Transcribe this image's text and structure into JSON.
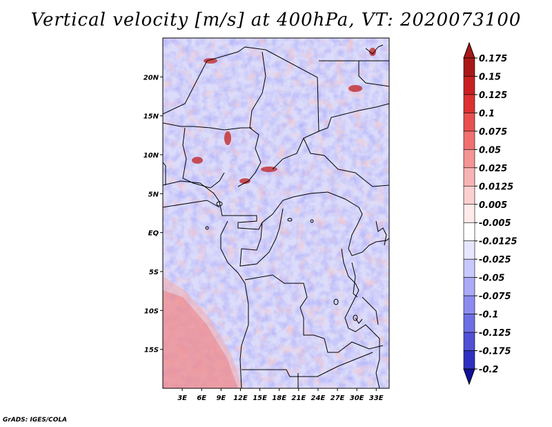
{
  "title": "Vertical velocity [m/s] at 400hPa, VT: 2020073100",
  "credit": "GrADS: IGES/COLA",
  "map": {
    "lon_range": [
      0,
      35
    ],
    "lat_range": [
      -20,
      25
    ],
    "lat_ticks": [
      {
        "lat": 20,
        "label": "20N"
      },
      {
        "lat": 15,
        "label": "15N"
      },
      {
        "lat": 10,
        "label": "10N"
      },
      {
        "lat": 5,
        "label": "5N"
      },
      {
        "lat": 0,
        "label": "EQ"
      },
      {
        "lat": -5,
        "label": "5S"
      },
      {
        "lat": -10,
        "label": "10S"
      },
      {
        "lat": -15,
        "label": "15S"
      }
    ],
    "lon_ticks": [
      {
        "lon": 3,
        "label": "3E"
      },
      {
        "lon": 6,
        "label": "6E"
      },
      {
        "lon": 9,
        "label": "9E"
      },
      {
        "lon": 12,
        "label": "12E"
      },
      {
        "lon": 15,
        "label": "15E"
      },
      {
        "lon": 18,
        "label": "18E"
      },
      {
        "lon": 21,
        "label": "21E"
      },
      {
        "lon": 24,
        "label": "24E"
      },
      {
        "lon": 27,
        "label": "27E"
      },
      {
        "lon": 30,
        "label": "30E"
      },
      {
        "lon": 33,
        "label": "33E"
      }
    ]
  },
  "colorbar": {
    "levels": [
      {
        "label": "0.175",
        "color": "#a81818"
      },
      {
        "label": "0.15",
        "color": "#c82020"
      },
      {
        "label": "0.125",
        "color": "#dc3030"
      },
      {
        "label": "0.1",
        "color": "#e85050"
      },
      {
        "label": "0.075",
        "color": "#f07070"
      },
      {
        "label": "0.05",
        "color": "#f49494"
      },
      {
        "label": "0.025",
        "color": "#f8b4b4"
      },
      {
        "label": "0.0125",
        "color": "#fcd0d0"
      },
      {
        "label": "0.005",
        "color": "#feeaea"
      },
      {
        "label": "-0.005",
        "color": "#ffffff"
      },
      {
        "label": "-0.0125",
        "color": "#e6e6fe"
      },
      {
        "label": "-0.025",
        "color": "#c8c8fc"
      },
      {
        "label": "-0.05",
        "color": "#aaaaf8"
      },
      {
        "label": "-0.075",
        "color": "#8c8cf0"
      },
      {
        "label": "-0.1",
        "color": "#6e6ee4"
      },
      {
        "label": "-0.125",
        "color": "#5050d4"
      },
      {
        "label": "-0.175",
        "color": "#3030c0"
      },
      {
        "label": "-0.2",
        "color": "#1a1aa8"
      }
    ],
    "top_color": "#a81818",
    "bottom_color": "#10109a"
  }
}
